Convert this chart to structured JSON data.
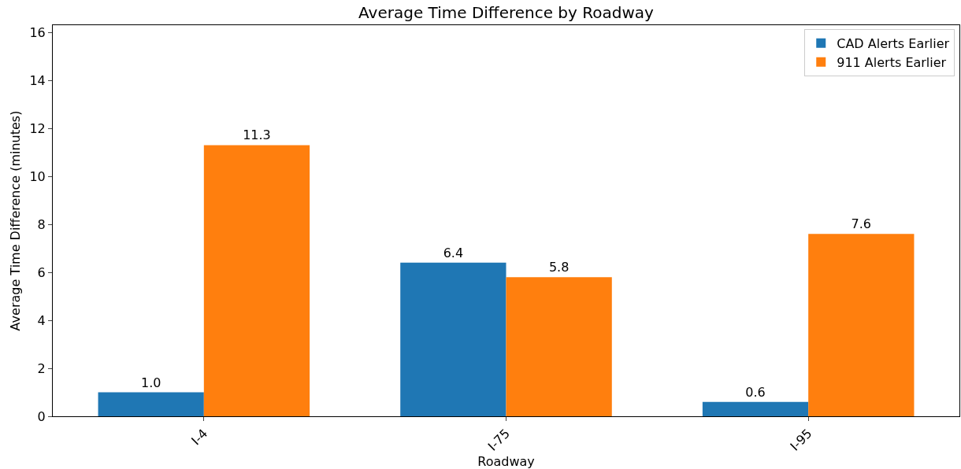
{
  "chart_data": {
    "type": "bar",
    "title": "Average Time Difference by Roadway",
    "xlabel": "Roadway",
    "ylabel": "Average Time Difference (minutes)",
    "categories": [
      "I-4",
      "I-75",
      "I-95"
    ],
    "series": [
      {
        "name": "CAD Alerts Earlier",
        "color": "#1f77b4",
        "values": [
          1.0,
          6.4,
          0.6
        ],
        "value_labels": [
          "1.0",
          "6.4",
          "0.6"
        ]
      },
      {
        "name": "911 Alerts Earlier",
        "color": "#ff7f0e",
        "values": [
          11.3,
          5.8,
          7.6
        ],
        "value_labels": [
          "11.3",
          "5.8",
          "7.6"
        ]
      }
    ],
    "ylim": [
      0,
      16.3
    ],
    "yticks": [
      0,
      2,
      4,
      6,
      8,
      10,
      12,
      14,
      16
    ],
    "grid": false,
    "legend": "top right"
  }
}
